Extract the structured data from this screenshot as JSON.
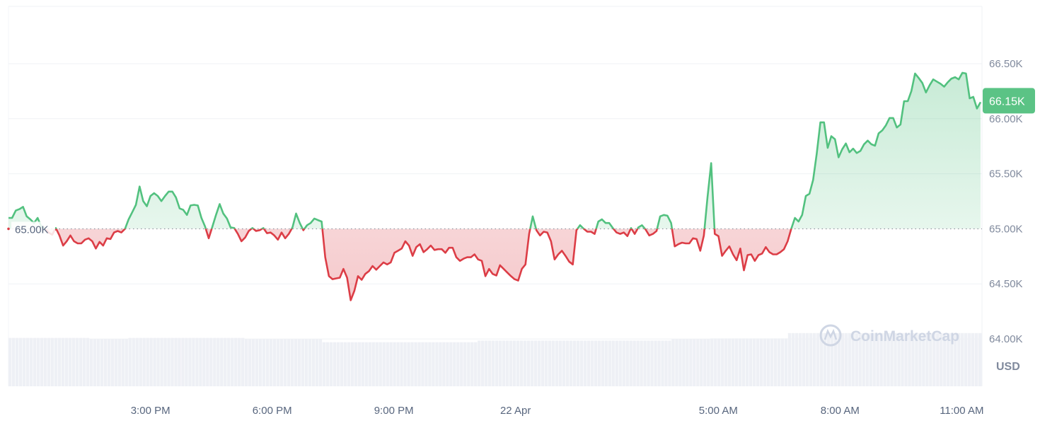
{
  "chart_data": {
    "type": "line",
    "title": "",
    "x_range": [
      "11:30 AM",
      "11:30 AM"
    ],
    "x_tick_labels": [
      "3:00 PM",
      "6:00 PM",
      "9:00 PM",
      "22 Apr",
      "5:00 AM",
      "8:00 AM",
      "11:00 AM"
    ],
    "y_tick_labels": [
      "64.00K",
      "64.50K",
      "65.00K",
      "65.50K",
      "66.00K",
      "66.50K"
    ],
    "y_ticks": [
      64000,
      64500,
      65000,
      65500,
      66000,
      66500
    ],
    "ylim": [
      63570,
      67020
    ],
    "y_unit_label": "USD",
    "baseline": {
      "value": 65000,
      "label": "65.00K"
    },
    "current_price": {
      "value": 66150,
      "label": "66.15K"
    },
    "grid": true,
    "colors": {
      "up": "#52c17f",
      "down": "#dc3d46",
      "badge": "#5bc385",
      "volume": "#eef0f5"
    },
    "watermark": "CoinMarketCap",
    "series": [
      {
        "values": [
          65099,
          65099,
          65166,
          65179,
          65199,
          65113,
          65086,
          65053,
          65099,
          65020,
          65000,
          64967,
          64947,
          65007,
          64940,
          64848,
          64887,
          64940,
          64887,
          64868,
          64868,
          64901,
          64914,
          64887,
          64821,
          64881,
          64848,
          64914,
          64907,
          64967,
          64980,
          64967,
          65000,
          65086,
          65152,
          65218,
          65384,
          65252,
          65205,
          65298,
          65324,
          65298,
          65252,
          65298,
          65338,
          65338,
          65285,
          65185,
          65172,
          65126,
          65212,
          65218,
          65212,
          65099,
          65020,
          64914,
          65020,
          65126,
          65225,
          65139,
          65093,
          65013,
          65007,
          64954,
          64887,
          64921,
          64980,
          65007,
          64980,
          64987,
          65007,
          64960,
          64967,
          64940,
          64901,
          64967,
          64914,
          64954,
          65013,
          65139,
          65053,
          64987,
          65033,
          65053,
          65093,
          65079,
          65066,
          64742,
          64570,
          64543,
          64550,
          64556,
          64636,
          64556,
          64351,
          64437,
          64570,
          64537,
          64590,
          64616,
          64662,
          64629,
          64662,
          64695,
          64676,
          64695,
          64782,
          64801,
          64821,
          64887,
          64848,
          64755,
          64834,
          64861,
          64788,
          64815,
          64848,
          64808,
          64815,
          64815,
          64782,
          64828,
          64828,
          64742,
          64709,
          64729,
          64742,
          64742,
          64768,
          64722,
          64709,
          64570,
          64636,
          64590,
          64576,
          64669,
          64636,
          64603,
          64570,
          64543,
          64530,
          64636,
          64676,
          64954,
          65113,
          64987,
          64940,
          64974,
          64967,
          64887,
          64722,
          64768,
          64801,
          64755,
          64702,
          64676,
          64987,
          65033,
          65000,
          64974,
          64974,
          64954,
          65066,
          65086,
          65053,
          65053,
          65007,
          64967,
          64954,
          64967,
          64934,
          65007,
          64954,
          65013,
          65033,
          64993,
          64940,
          64954,
          64980,
          65113,
          65126,
          65119,
          65053,
          64841,
          64861,
          64874,
          64868,
          64868,
          64914,
          64907,
          64801,
          64940,
          65285,
          65596,
          64954,
          64934,
          64755,
          64801,
          64841,
          64768,
          64715,
          64821,
          64623,
          64762,
          64768,
          64709,
          64762,
          64775,
          64834,
          64788,
          64768,
          64768,
          64788,
          64815,
          64887,
          65000,
          65099,
          65066,
          65126,
          65298,
          65318,
          65444,
          65682,
          65967,
          65967,
          65735,
          65841,
          65814,
          65649,
          65722,
          65775,
          65695,
          65728,
          65688,
          65708,
          65768,
          65801,
          65768,
          65755,
          65867,
          65894,
          65940,
          66006,
          66006,
          65920,
          65947,
          66159,
          66159,
          66251,
          66410,
          66370,
          66324,
          66238,
          66304,
          66357,
          66337,
          66317,
          66291,
          66331,
          66364,
          66377,
          66357,
          66417,
          66410,
          66185,
          66198,
          66092,
          66150
        ]
      }
    ],
    "volume_relative": [
      0.9,
      0.9,
      0.88,
      0.9,
      0.9,
      0.9,
      0.88,
      0.88,
      0.82,
      0.82,
      0.82,
      0.82,
      0.85,
      0.85,
      0.85,
      0.85,
      0.85,
      0.88,
      0.89,
      0.89,
      0.99,
      0.99,
      0.99,
      0.99,
      0.99
    ]
  }
}
